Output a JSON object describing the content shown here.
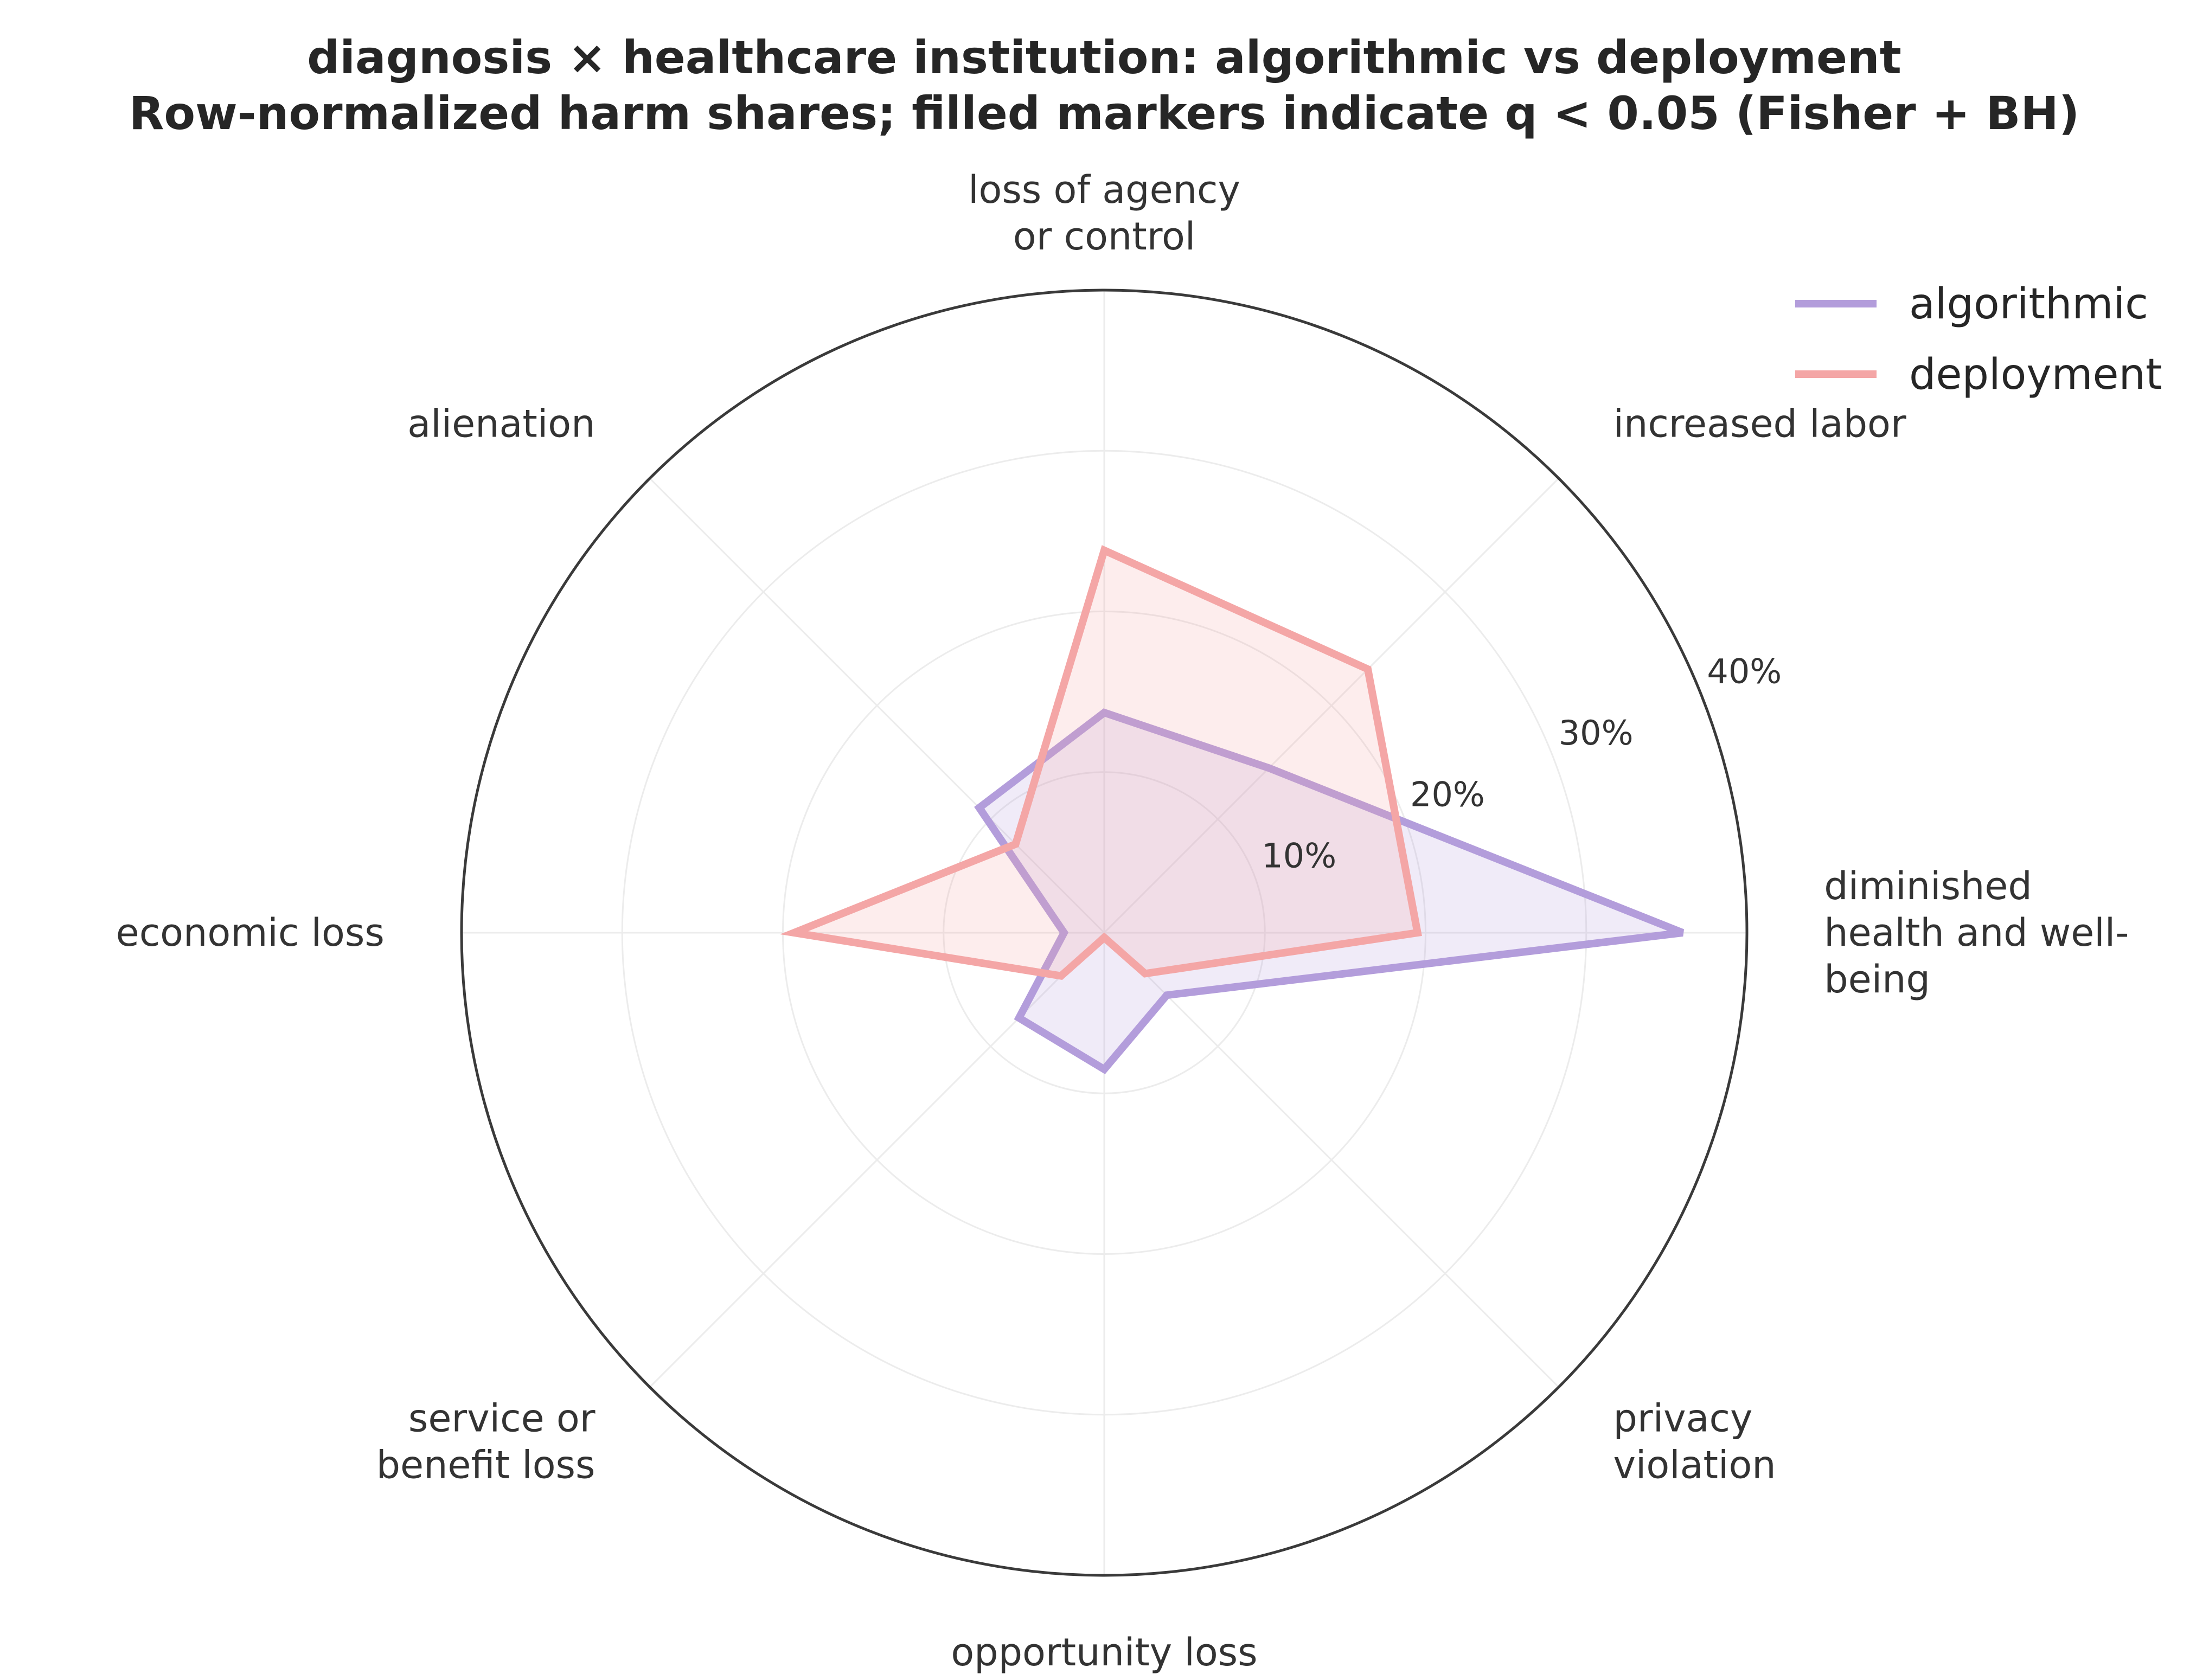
{
  "chart_data": {
    "type": "radar",
    "title_line1": "diagnosis × healthcare institution: algorithmic vs deployment",
    "title_line2": "Row-normalized harm shares; filled markers indicate q < 0.05 (Fisher + BH)",
    "categories": [
      [
        "diminished",
        "health and well-",
        "being"
      ],
      [
        "increased labor"
      ],
      [
        "loss of agency",
        "or control"
      ],
      [
        "alienation"
      ],
      [
        "economic loss"
      ],
      [
        "service or",
        "benefit loss"
      ],
      [
        "opportunity loss"
      ],
      [
        "privacy",
        "violation"
      ]
    ],
    "rlim": [
      0,
      40
    ],
    "r_ticks": [
      10,
      20,
      30,
      40
    ],
    "r_tick_labels": [
      "10%",
      "20%",
      "30%",
      "40%"
    ],
    "grid": true,
    "legend_position": "top-right",
    "series": [
      {
        "name": "algorithmic",
        "color": "#b39ddb",
        "values": [
          36.0,
          14.5,
          13.7,
          11.0,
          2.5,
          7.5,
          8.5,
          5.5
        ]
      },
      {
        "name": "deployment",
        "color": "#f4a6a6",
        "values": [
          19.5,
          23.2,
          23.8,
          7.8,
          19.3,
          3.8,
          0.3,
          3.6
        ]
      }
    ]
  }
}
